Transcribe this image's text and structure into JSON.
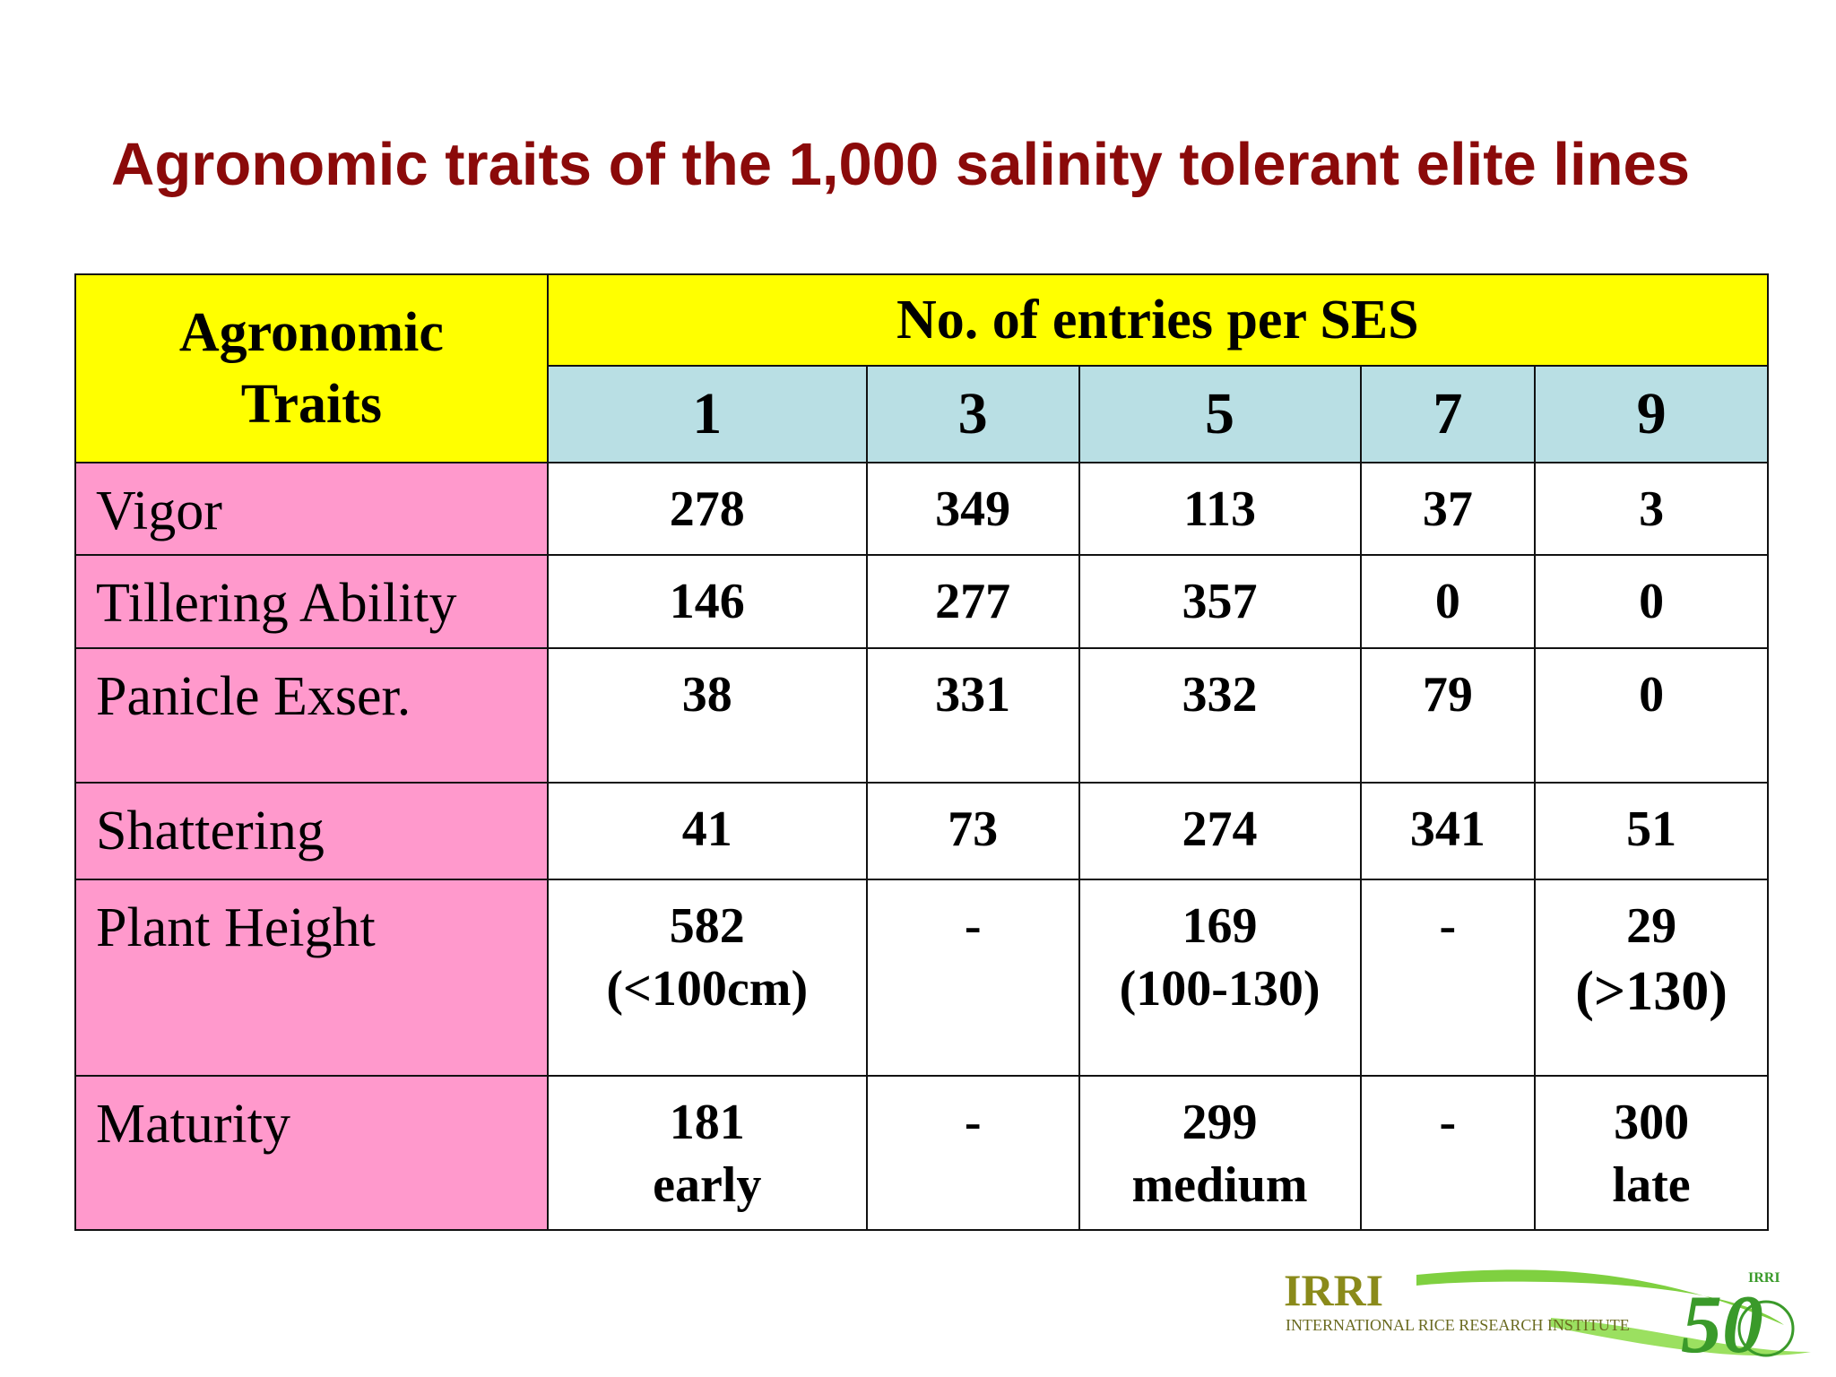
{
  "title": "Agronomic traits of the 1,000 salinity tolerant elite lines",
  "table": {
    "header_traits_line1": "Agronomic",
    "header_traits_line2": "Traits",
    "header_group": "No. of entries per SES",
    "ses_levels": [
      "1",
      "3",
      "5",
      "7",
      "9"
    ],
    "rows": [
      {
        "trait": "Vigor",
        "values": [
          [
            "278"
          ],
          [
            "349"
          ],
          [
            "113"
          ],
          [
            "37"
          ],
          [
            "3"
          ]
        ]
      },
      {
        "trait": "Tillering Ability",
        "values": [
          [
            "146"
          ],
          [
            "277"
          ],
          [
            "357"
          ],
          [
            "0"
          ],
          [
            "0"
          ]
        ]
      },
      {
        "trait": "Panicle Exser.",
        "values": [
          [
            "38"
          ],
          [
            "331"
          ],
          [
            "332"
          ],
          [
            "79"
          ],
          [
            "0"
          ]
        ]
      },
      {
        "trait": "Shattering",
        "values": [
          [
            "41"
          ],
          [
            "73"
          ],
          [
            "274"
          ],
          [
            "341"
          ],
          [
            "51"
          ]
        ]
      },
      {
        "trait": "Plant Height",
        "values": [
          [
            "582",
            "(<100cm)"
          ],
          [
            "-"
          ],
          [
            "169",
            "(100-130)"
          ],
          [
            "-"
          ],
          [
            "29",
            "(>130)"
          ]
        ]
      },
      {
        "trait": "Maturity",
        "values": [
          [
            "181",
            "early"
          ],
          [
            "-"
          ],
          [
            "299",
            "medium"
          ],
          [
            "-"
          ],
          [
            "300",
            "late"
          ]
        ]
      }
    ]
  },
  "logo": {
    "name": "IRRI",
    "subtitle": "INTERNATIONAL RICE RESEARCH INSTITUTE",
    "anniversary": "50",
    "badge": "IRRI",
    "colors": {
      "green": "#3a9a2a",
      "olive": "#8a8a1a",
      "light_green": "#7fd040"
    }
  }
}
